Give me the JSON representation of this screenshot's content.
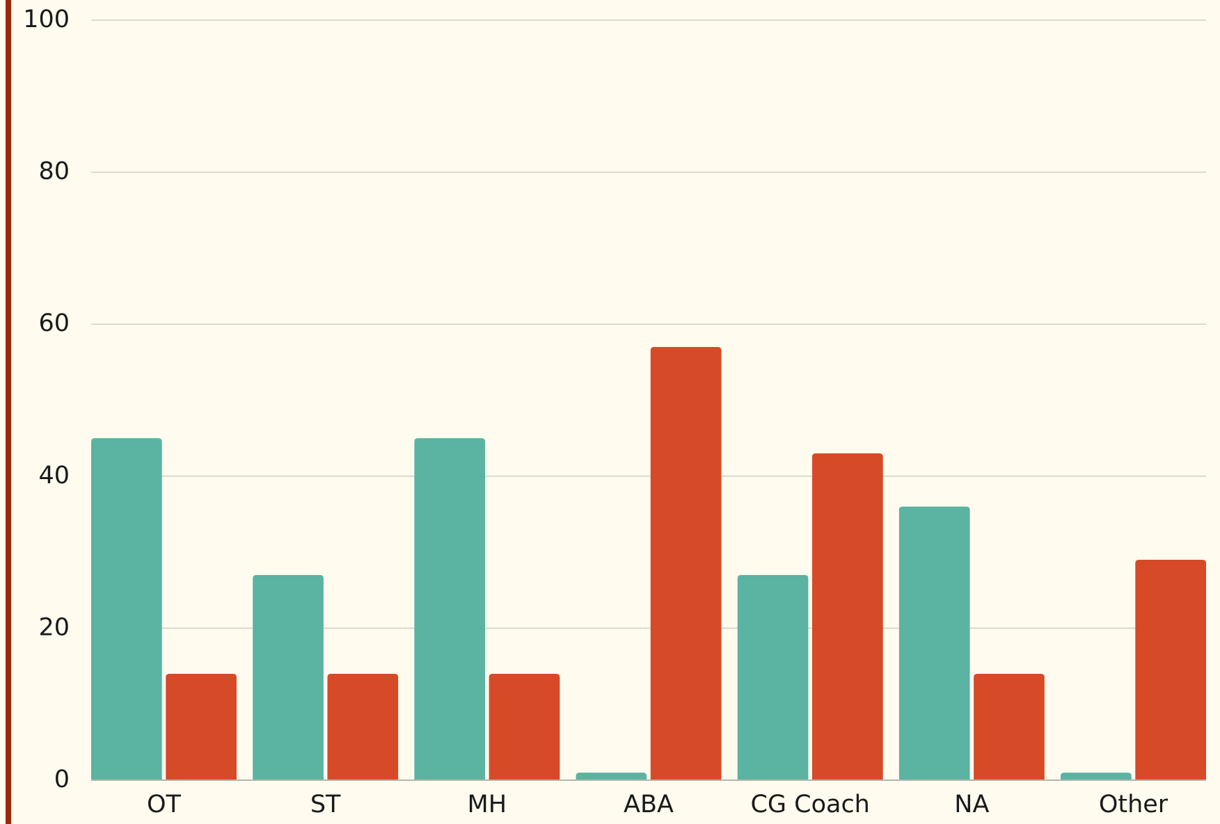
{
  "chart_data": {
    "type": "bar",
    "categories": [
      "OT",
      "ST",
      "MH",
      "ABA",
      "CG Coach",
      "NA",
      "Other"
    ],
    "series": [
      {
        "color": "#5bb3a2",
        "values": [
          45,
          27,
          45,
          1,
          27,
          36,
          1
        ]
      },
      {
        "color": "#d64a27",
        "values": [
          14,
          14,
          14,
          57,
          43,
          14,
          29
        ]
      }
    ],
    "ylim": [
      0,
      100
    ],
    "yticks": [
      0,
      20,
      40,
      60,
      80,
      100
    ],
    "grid": true
  }
}
